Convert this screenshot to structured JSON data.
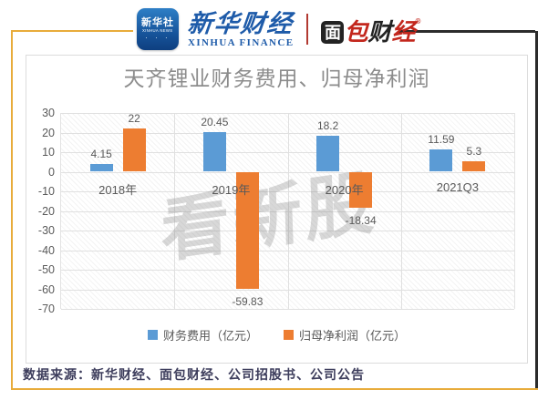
{
  "header": {
    "xinhua_icon": {
      "line1": "新华社",
      "line2": "XINHUA NEWS",
      "stars": "· · ·"
    },
    "xinhua_finance": {
      "cn": "新华财经",
      "en": "XINHUA FINANCE"
    },
    "mianbao": {
      "char1": "面",
      "char2": "包",
      "char3": "财",
      "char4": "经",
      "reg": "®"
    }
  },
  "chart_data": {
    "type": "bar",
    "title": "天齐锂业财务费用、归母净利润",
    "categories": [
      "2018年",
      "2019年",
      "2020年",
      "2021Q3"
    ],
    "series": [
      {
        "name": "财务费用（亿元）",
        "color": "#5B9BD5",
        "values": [
          4.15,
          20.45,
          18.2,
          11.59
        ],
        "labels": [
          "4.15",
          "20.45",
          "18.2",
          "11.59"
        ]
      },
      {
        "name": "归母净利润（亿元）",
        "color": "#ED7D31",
        "values": [
          22,
          -59.83,
          -18.34,
          5.3
        ],
        "labels": [
          "22",
          "-59.83",
          "-18.34",
          "5.3"
        ]
      }
    ],
    "ylim": [
      -70,
      30
    ],
    "yticks": [
      30,
      20,
      10,
      0,
      -10,
      -20,
      -30,
      -40,
      -50,
      -60,
      -70
    ],
    "grid": true,
    "legend_position": "bottom"
  },
  "watermark": "看新股",
  "source_note": "数据来源：新华财经、面包财经、公司招股书、公司公告",
  "colors": {
    "bar_blue": "#5B9BD5",
    "bar_orange": "#ED7D31",
    "frame_yellow": "#E8AC3B",
    "frame_dark": "#2B2B2B",
    "brand_blue": "#1E5BA9",
    "brand_red": "#C3271D",
    "title_gray": "#8C8C8C",
    "axis_gray": "#595959"
  }
}
